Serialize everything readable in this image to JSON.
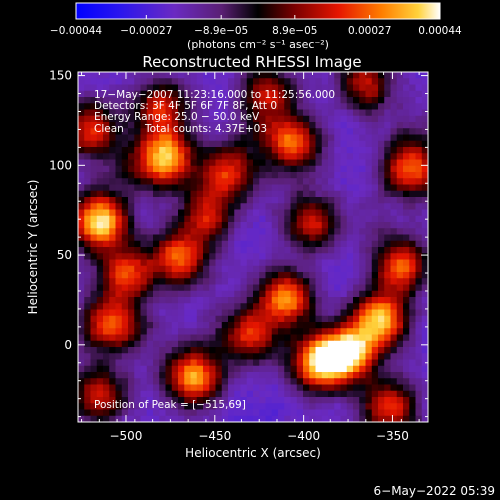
{
  "chart_data": {
    "type": "heatmap",
    "title": "Reconstructed RHESSI Image",
    "xlabel": "Heliocentric X (arcsec)",
    "ylabel": "Heliocentric Y (arcsec)",
    "xlim": [
      -527,
      -330
    ],
    "ylim": [
      -43,
      152
    ],
    "x_ticks": [
      -500,
      -450,
      -400,
      -350
    ],
    "x_tick_labels": [
      "−500",
      "−450",
      "−400",
      "−350"
    ],
    "y_ticks": [
      0,
      50,
      100,
      150
    ],
    "y_tick_labels": [
      "0",
      "50",
      "100",
      "150"
    ],
    "colorbar": {
      "min": -0.00044,
      "max": 0.00044,
      "ticks": [
        -0.00044,
        -0.00027,
        -8.9e-05,
        8.9e-05,
        0.00027,
        0.00044
      ],
      "tick_labels": [
        "−0.00044",
        "−0.00027",
        "−8.9e−05",
        "8.9e−05",
        "0.00027",
        "0.00044"
      ],
      "unit_label": "(photons cm⁻² s⁻¹ asec⁻²)"
    },
    "annotations": {
      "time_range": "17−May−2007 11:23:16.000 to 11:25:56.000",
      "detectors": "Detectors: 3F 4F 5F 6F 7F 8F, Att 0",
      "energy_range": "Energy Range: 25.0 − 50.0 keV",
      "method": "Clean",
      "total_counts": "Total counts: 4.37E+03",
      "peak_position": "Position of Peak = [−515,69]"
    },
    "bright_sources": [
      {
        "x": -515,
        "y": 69,
        "value": 0.00044
      },
      {
        "x": -478,
        "y": 104,
        "value": 0.00038
      },
      {
        "x": -462,
        "y": -18,
        "value": 0.00034
      },
      {
        "x": -375,
        "y": -5,
        "value": 0.0004
      },
      {
        "x": -357,
        "y": 14,
        "value": 0.00036
      },
      {
        "x": -392,
        "y": -10,
        "value": 0.00033
      },
      {
        "x": -410,
        "y": 26,
        "value": 0.0003
      },
      {
        "x": -340,
        "y": 98,
        "value": 0.00028
      },
      {
        "x": -470,
        "y": 48,
        "value": 0.00026
      },
      {
        "x": -405,
        "y": 112,
        "value": 0.00024
      },
      {
        "x": -520,
        "y": 120,
        "value": 0.00022
      },
      {
        "x": -510,
        "y": 12,
        "value": 0.00022
      },
      {
        "x": -443,
        "y": 96,
        "value": 0.0002
      },
      {
        "x": -500,
        "y": 40,
        "value": 0.0002
      },
      {
        "x": -345,
        "y": 44,
        "value": 0.00025
      },
      {
        "x": -430,
        "y": 5,
        "value": 0.00018
      },
      {
        "x": -480,
        "y": 132,
        "value": 0.00018
      },
      {
        "x": -365,
        "y": 145,
        "value": 0.00016
      },
      {
        "x": -395,
        "y": 68,
        "value": 0.00016
      },
      {
        "x": -352,
        "y": -35,
        "value": 0.00022
      },
      {
        "x": -515,
        "y": -28,
        "value": 0.00018
      },
      {
        "x": -455,
        "y": 72,
        "value": 0.00014
      },
      {
        "x": -420,
        "y": 140,
        "value": 0.00015
      }
    ],
    "dark_sources": [
      {
        "x": -382,
        "y": 128,
        "value": -0.00024
      },
      {
        "x": -412,
        "y": 88,
        "value": -0.00018
      },
      {
        "x": -434,
        "y": 35,
        "value": -0.0002
      },
      {
        "x": -448,
        "y": 8,
        "value": -0.00016
      },
      {
        "x": -362,
        "y": 70,
        "value": -0.00016
      },
      {
        "x": -492,
        "y": 8,
        "value": -0.00012
      },
      {
        "x": -498,
        "y": 98,
        "value": -0.0001
      },
      {
        "x": -335,
        "y": 120,
        "value": -0.00012
      },
      {
        "x": -425,
        "y": 118,
        "value": -0.0001
      }
    ]
  },
  "footer": {
    "date": "6−May−2022 05:39"
  }
}
